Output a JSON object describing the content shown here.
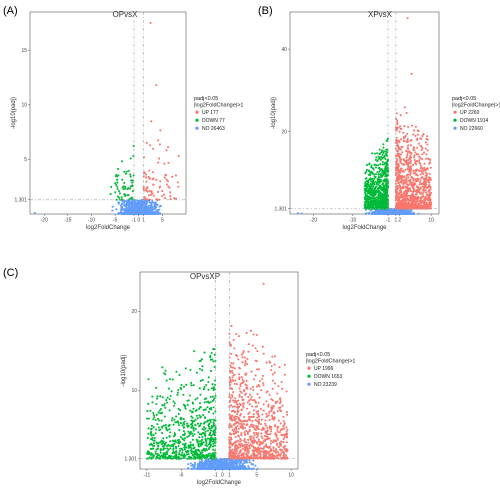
{
  "colors": {
    "up": "#f8766d",
    "down": "#00ba38",
    "no": "#619cff",
    "guide": "#a0a0a0",
    "frame": "#555555"
  },
  "chart_data": [
    {
      "panel": "(A)",
      "type": "scatter",
      "title": "OPvsX",
      "xlabel": "log2FoldChange",
      "ylabel": "-log10(padj)",
      "xlim": [
        -23,
        10
      ],
      "ylim": [
        0,
        18.5
      ],
      "xticks": [
        -20,
        -15,
        -10,
        -5,
        -1,
        0,
        1,
        5
      ],
      "xtick_labels": [
        "-20",
        "-15",
        "-10",
        "-5",
        "-1",
        "0",
        "1",
        "5"
      ],
      "yticks": [
        1.301,
        5,
        10,
        15
      ],
      "ytick_labels": [
        "1.301",
        "5",
        "10",
        "15"
      ],
      "thresholds": {
        "x": [
          -1,
          1
        ],
        "y": 1.301
      },
      "legend_title": "padj<0.05\n|log2FoldChange|>1",
      "legend": [
        {
          "label": "UP 177",
          "group": "up"
        },
        {
          "label": "DOWN 77",
          "group": "down"
        },
        {
          "label": "NO 26463",
          "group": "no"
        }
      ],
      "groups": {
        "up": {
          "count": 177,
          "x_range": [
            1,
            8.5
          ],
          "y_range": [
            1.301,
            11
          ],
          "outliers": [
            [
              2.5,
              17.5
            ],
            [
              3.7,
              11.8
            ]
          ]
        },
        "down": {
          "count": 77,
          "x_range": [
            -6,
            -1
          ],
          "y_range": [
            1.301,
            8
          ]
        },
        "no": {
          "count": 26463,
          "x_range": [
            -12,
            8
          ],
          "y_range": [
            0,
            1.301
          ],
          "outliers": [
            [
              -22,
              0.1
            ]
          ]
        }
      }
    },
    {
      "panel": "(B)",
      "type": "scatter",
      "title": "XPvsX",
      "xlabel": "log2FoldChange",
      "ylabel": "-log10(padj)",
      "xlim": [
        -26,
        12
      ],
      "ylim": [
        0,
        49
      ],
      "xticks": [
        -20,
        -10,
        -1,
        1,
        2,
        10
      ],
      "xtick_labels": [
        "-20",
        "-10",
        "-1",
        "1",
        "2",
        "10"
      ],
      "yticks": [
        1.301,
        20,
        40
      ],
      "ytick_labels": [
        "1.301",
        "20",
        "40"
      ],
      "thresholds": {
        "x": [
          -1,
          1
        ],
        "y": 1.301
      },
      "legend_title": "padj<0.05\n|log2FoldChange|>1",
      "legend": [
        {
          "label": "UP 2260",
          "group": "up"
        },
        {
          "label": "DOWN 1914",
          "group": "down"
        },
        {
          "label": "NO 22660",
          "group": "no"
        }
      ],
      "groups": {
        "up": {
          "count": 2260,
          "x_range": [
            1,
            10
          ],
          "y_range": [
            1.301,
            30
          ],
          "outliers": [
            [
              4,
              47.5
            ],
            [
              5,
              34
            ]
          ]
        },
        "down": {
          "count": 1914,
          "x_range": [
            -7,
            -1
          ],
          "y_range": [
            1.301,
            20
          ]
        },
        "no": {
          "count": 22660,
          "x_range": [
            -14,
            10
          ],
          "y_range": [
            0,
            1.301
          ],
          "outliers": [
            [
              -24,
              0.2
            ],
            [
              -23,
              0.15
            ]
          ]
        }
      }
    },
    {
      "panel": "(C)",
      "type": "scatter",
      "title": "OPvsXP",
      "xlabel": "log2FoldChange",
      "ylabel": "-log10(padj)",
      "xlim": [
        -12,
        11
      ],
      "ylim": [
        0,
        25
      ],
      "xticks": [
        -11,
        -6,
        -1,
        0,
        1,
        5,
        10
      ],
      "xtick_labels": [
        "-11",
        "-6",
        "-1",
        "0",
        "1",
        "5",
        "10"
      ],
      "yticks": [
        1.301,
        10,
        20
      ],
      "ytick_labels": [
        "1.301",
        "10",
        "20"
      ],
      "thresholds": {
        "x": [
          -1,
          1
        ],
        "y": 1.301
      },
      "legend_title": "padj<0.05\n|log2FoldChange|>1",
      "legend": [
        {
          "label": "UP 1996",
          "group": "up"
        },
        {
          "label": "DOWN 1653",
          "group": "down"
        },
        {
          "label": "NO 23239",
          "group": "no"
        }
      ],
      "groups": {
        "up": {
          "count": 1996,
          "x_range": [
            1,
            9.5
          ],
          "y_range": [
            1.301,
            21
          ],
          "outliers": [
            [
              6,
              23.5
            ],
            [
              5,
              17
            ]
          ]
        },
        "down": {
          "count": 1653,
          "x_range": [
            -11,
            -1
          ],
          "y_range": [
            1.301,
            18
          ]
        },
        "no": {
          "count": 23239,
          "x_range": [
            -10,
            10
          ],
          "y_range": [
            0,
            1.301
          ]
        }
      }
    }
  ]
}
